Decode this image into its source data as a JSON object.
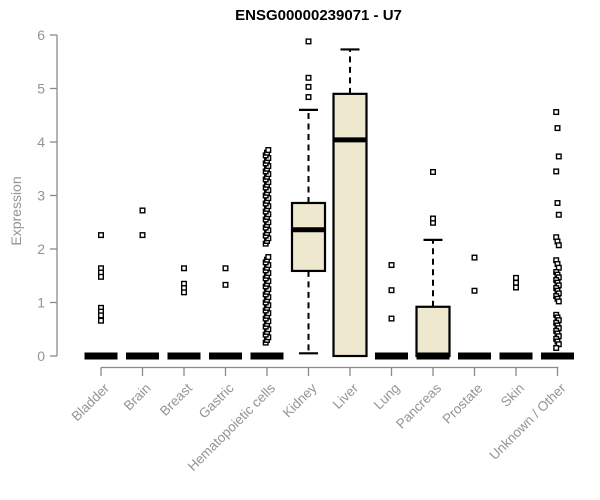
{
  "chart_data": {
    "type": "boxplot",
    "title": "ENSG00000239071 - U7",
    "ylabel": "Expression",
    "xlabel": "",
    "ylim": [
      0,
      6
    ],
    "yticks": [
      0,
      1,
      2,
      3,
      4,
      5,
      6
    ],
    "grid": false,
    "legend": "none",
    "categories": [
      "Bladder",
      "Brain",
      "Breast",
      "Gastric",
      "Hematopoietic cells",
      "Kidney",
      "Liver",
      "Lung",
      "Pancreas",
      "Prostate",
      "Skin",
      "Unknown / Other"
    ],
    "boxes": [
      {
        "category": "Bladder",
        "whislo": 0,
        "q1": 0,
        "med": 0,
        "q3": 0,
        "whishi": 0,
        "outliers": [
          2.26,
          1.64,
          1.56,
          1.48,
          0.9,
          0.83,
          0.76,
          0.66
        ]
      },
      {
        "category": "Brain",
        "whislo": 0,
        "q1": 0,
        "med": 0,
        "q3": 0,
        "whishi": 0,
        "outliers": [
          2.72,
          2.26
        ]
      },
      {
        "category": "Breast",
        "whislo": 0,
        "q1": 0,
        "med": 0,
        "q3": 0,
        "whishi": 0,
        "outliers": [
          1.64,
          1.35,
          1.27,
          1.19
        ]
      },
      {
        "category": "Gastric",
        "whislo": 0,
        "q1": 0,
        "med": 0,
        "q3": 0,
        "whishi": 0,
        "outliers": [
          1.64,
          1.33
        ]
      },
      {
        "category": "Hematopoietic cells",
        "whislo": 0,
        "q1": 0,
        "med": 0,
        "q3": 0,
        "whishi": 0,
        "outliers": [
          0.25,
          0.3,
          0.35,
          0.4,
          0.45,
          0.5,
          0.55,
          0.6,
          0.65,
          0.7,
          0.75,
          0.8,
          0.85,
          0.9,
          0.95,
          1.0,
          1.05,
          1.1,
          1.15,
          1.2,
          1.25,
          1.3,
          1.35,
          1.4,
          1.45,
          1.5,
          1.55,
          1.6,
          1.65,
          1.7,
          1.75,
          1.8,
          1.85,
          2.1,
          2.15,
          2.2,
          2.25,
          2.3,
          2.35,
          2.4,
          2.45,
          2.5,
          2.55,
          2.6,
          2.65,
          2.7,
          2.75,
          2.8,
          2.85,
          2.9,
          2.95,
          3.0,
          3.05,
          3.1,
          3.15,
          3.2,
          3.25,
          3.3,
          3.35,
          3.4,
          3.45,
          3.5,
          3.55,
          3.6,
          3.65,
          3.7,
          3.75,
          3.8,
          3.85
        ]
      },
      {
        "category": "Kidney",
        "whislo": 0.05,
        "q1": 1.59,
        "med": 2.36,
        "q3": 2.86,
        "whishi": 4.6,
        "outliers": [
          4.84,
          5.03,
          5.2,
          5.88
        ]
      },
      {
        "category": "Liver",
        "whislo": 0,
        "q1": 0,
        "med": 4.04,
        "q3": 4.9,
        "whishi": 5.73,
        "outliers": []
      },
      {
        "category": "Lung",
        "whislo": 0,
        "q1": 0,
        "med": 0,
        "q3": 0,
        "whishi": 0,
        "outliers": [
          1.7,
          1.23,
          0.7
        ]
      },
      {
        "category": "Pancreas",
        "whislo": 0,
        "q1": 0,
        "med": 0,
        "q3": 0.92,
        "whishi": 2.17,
        "outliers": [
          2.49,
          2.57,
          3.44
        ]
      },
      {
        "category": "Prostate",
        "whislo": 0,
        "q1": 0,
        "med": 0,
        "q3": 0,
        "whishi": 0,
        "outliers": [
          1.84,
          1.22
        ]
      },
      {
        "category": "Skin",
        "whislo": 0,
        "q1": 0,
        "med": 0,
        "q3": 0,
        "whishi": 0,
        "outliers": [
          1.46,
          1.37,
          1.28
        ]
      },
      {
        "category": "Unknown / Other",
        "whislo": 0,
        "q1": 0,
        "med": 0,
        "q3": 0,
        "whishi": 0,
        "outliers": [
          4.56,
          4.26,
          3.73,
          3.45,
          2.86,
          2.64,
          2.22,
          2.14,
          2.07,
          1.79,
          1.72,
          1.65,
          1.57,
          1.52,
          1.47,
          1.42,
          1.37,
          1.32,
          1.27,
          1.22,
          1.17,
          1.12,
          1.07,
          1.02,
          0.77,
          0.72,
          0.67,
          0.62,
          0.57,
          0.52,
          0.47,
          0.42,
          0.37,
          0.32,
          0.27,
          0.22,
          0.15
        ]
      }
    ],
    "colors": {
      "box_fill": "#EDE8CE",
      "box_stroke": "#000000",
      "median": "#000000",
      "axis": "#8A8A8A",
      "tick_text": "#949494",
      "title_text": "#000000",
      "background": "#FFFFFF"
    }
  }
}
